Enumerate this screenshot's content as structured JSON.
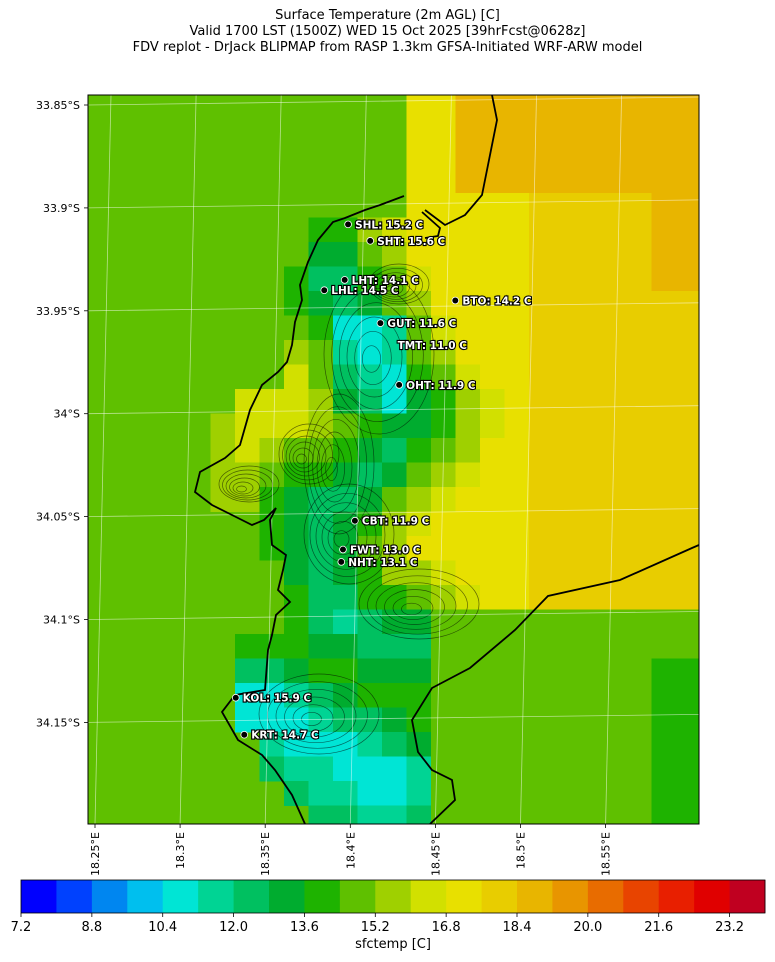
{
  "title": {
    "line1": "Surface Temperature (2m AGL) [C]",
    "line2": "Valid 1700 LST (1500Z) WED 15 Oct 2025 [39hrFcst@0628z]",
    "line3": "FDV replot - DrJack BLIPMAP from RASP 1.3km GFSA-Initiated WRF-ARW model"
  },
  "map": {
    "lat_ticks": [
      {
        "label": "33.85°S",
        "lat": -33.85
      },
      {
        "label": "33.9°S",
        "lat": -33.9
      },
      {
        "label": "33.95°S",
        "lat": -33.95
      },
      {
        "label": "34°S",
        "lat": -34.0
      },
      {
        "label": "34.05°S",
        "lat": -34.05
      },
      {
        "label": "34.1°S",
        "lat": -34.1
      },
      {
        "label": "34.15°S",
        "lat": -34.15
      }
    ],
    "lon_ticks": [
      {
        "label": "18.25°E",
        "lon": 18.25
      },
      {
        "label": "18.3°E",
        "lon": 18.3
      },
      {
        "label": "18.35°E",
        "lon": 18.35
      },
      {
        "label": "18.4°E",
        "lon": 18.4
      },
      {
        "label": "18.45°E",
        "lon": 18.45
      },
      {
        "label": "18.5°E",
        "lon": 18.5
      },
      {
        "label": "18.55°E",
        "lon": 18.55
      }
    ],
    "stations": [
      {
        "code": "SHL",
        "label": "SHL: 15.2 C",
        "temp": 15.2,
        "lon": 18.394,
        "lat": -33.908
      },
      {
        "code": "SHT",
        "label": "SHT: 15.6 C",
        "temp": 15.6,
        "lon": 18.407,
        "lat": -33.916
      },
      {
        "code": "LHT",
        "label": "LHT: 14.1 C",
        "temp": 14.1,
        "lon": 18.392,
        "lat": -33.935
      },
      {
        "code": "LHL",
        "label": "LHL: 14.5 C",
        "temp": 14.5,
        "lon": 18.38,
        "lat": -33.94
      },
      {
        "code": "BTO",
        "label": "BTO: 14.2 C",
        "temp": 14.2,
        "lon": 18.457,
        "lat": -33.945
      },
      {
        "code": "GUT",
        "label": "GUT: 11.6 C",
        "temp": 11.6,
        "lon": 18.413,
        "lat": -33.956
      },
      {
        "code": "TMT",
        "label": "TMT: 11.0 C",
        "temp": 11.0,
        "lon": 18.419,
        "lat": -33.957
      },
      {
        "code": "OHT",
        "label": "OHT: 11.9 C",
        "temp": 11.9,
        "lon": 18.424,
        "lat": -33.986
      },
      {
        "code": "CBT",
        "label": "CBT: 11.9 C",
        "temp": 11.9,
        "lon": 18.398,
        "lat": -34.052
      },
      {
        "code": "FWT",
        "label": "FWT: 13.0 C",
        "temp": 13.0,
        "lon": 18.391,
        "lat": -34.066
      },
      {
        "code": "NHT",
        "label": "NHT: 13.1 C",
        "temp": 13.1,
        "lon": 18.39,
        "lat": -34.072
      },
      {
        "code": "KOL",
        "label": "KOL: 15.9 C",
        "temp": 15.9,
        "lon": 18.328,
        "lat": -34.138
      },
      {
        "code": "KRT",
        "label": "KRT: 14.7 C",
        "temp": 14.7,
        "lon": 18.333,
        "lat": -34.156
      }
    ]
  },
  "colorbar": {
    "label": "sfctemp [C]",
    "min": 7.2,
    "max": 24.0,
    "step": 0.8,
    "tick_labels": [
      "7.2",
      "8.8",
      "10.4",
      "12.0",
      "13.6",
      "15.2",
      "16.8",
      "18.4",
      "20.0",
      "21.6",
      "23.2"
    ],
    "colors": [
      "#0000fe",
      "#0041fe",
      "#0086f0",
      "#00bfee",
      "#00e5d5",
      "#00d494",
      "#00c060",
      "#00ac2f",
      "#1eb300",
      "#5fc000",
      "#9fd000",
      "#d2e000",
      "#e8e000",
      "#e8cd00",
      "#e8b500",
      "#e89500",
      "#e86c00",
      "#e84400",
      "#e81f00",
      "#e00000",
      "#c00020"
    ]
  },
  "colors": {
    "ocean": "#5fc000",
    "coast": "#000000",
    "gridline": "#ffffff",
    "station_label": "#ffffff",
    "station_outline": "#000000"
  }
}
